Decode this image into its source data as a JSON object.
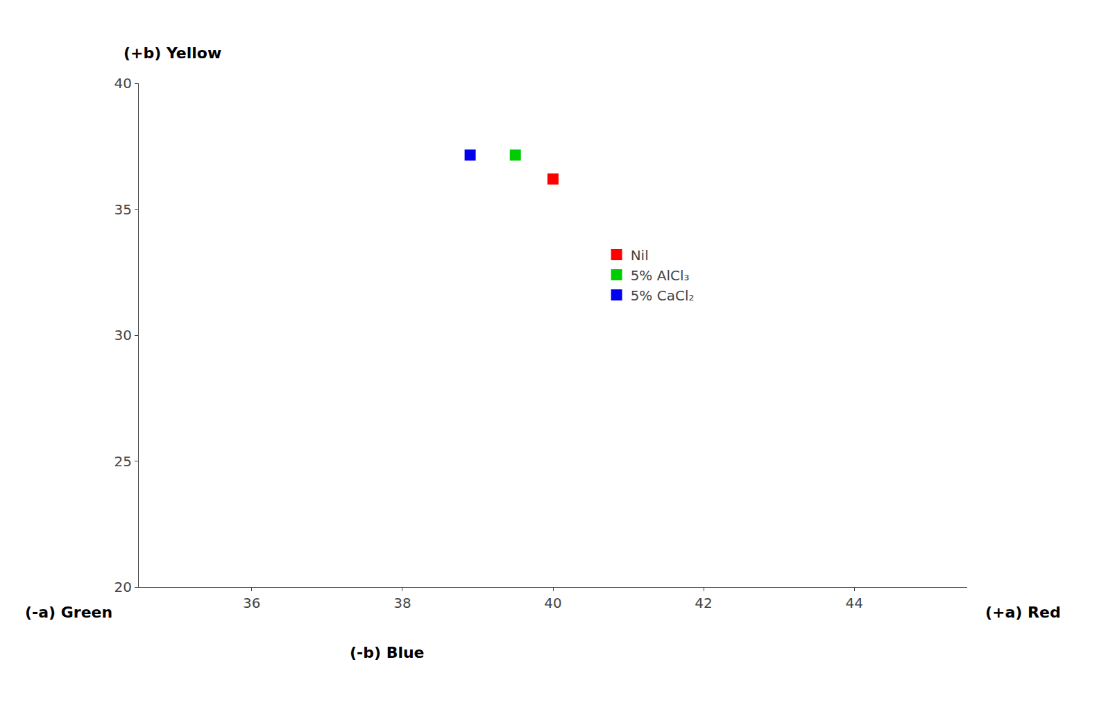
{
  "chart_data": {
    "type": "scatter",
    "series": [
      {
        "name": "Nil",
        "color": "#ff0000",
        "x": [
          40.0
        ],
        "values": [
          36.2
        ]
      },
      {
        "name": "5% AlCl₃",
        "color": "#00cc00",
        "x": [
          39.5
        ],
        "values": [
          37.15
        ]
      },
      {
        "name": "5% CaCl₂",
        "color": "#0000ee",
        "x": [
          38.9
        ],
        "values": [
          37.15
        ]
      }
    ],
    "marker": "square",
    "xlim": [
      34.5,
      45.5
    ],
    "ylim": [
      20,
      40
    ],
    "xticks": [
      36,
      38,
      40,
      42,
      44
    ],
    "yticks": [
      20,
      25,
      30,
      35,
      40
    ],
    "annotations": [
      "(+b) Yellow",
      "(-a) Green",
      "(+a) Red",
      "(-b) Blue"
    ],
    "legend": "center right",
    "grid": false
  }
}
